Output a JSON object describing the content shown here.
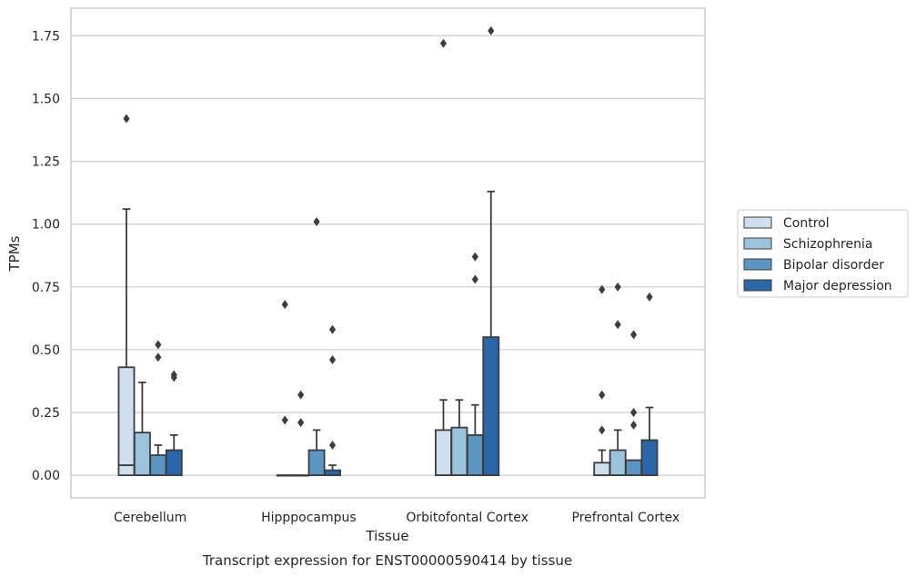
{
  "chart_data": {
    "type": "boxplot",
    "caption": "Transcript expression for ENST00000590414 by tissue",
    "xlabel": "Tissue",
    "ylabel": "TPMs",
    "ylim": [
      -0.09,
      1.86
    ],
    "yticks": [
      0.0,
      0.25,
      0.5,
      0.75,
      1.0,
      1.25,
      1.5,
      1.75
    ],
    "ytick_labels": [
      "0.00",
      "0.25",
      "0.50",
      "0.75",
      "1.00",
      "1.25",
      "1.50",
      "1.75"
    ],
    "grid": "horizontal",
    "legend_position": "right",
    "categories": [
      "Cerebellum",
      "Hipppocampus",
      "Orbitofontal Cortex",
      "Prefrontal Cortex"
    ],
    "series": [
      {
        "name": "Control",
        "color": "#cfdfee",
        "boxes": [
          {
            "q1": 0.0,
            "median": 0.04,
            "q3": 0.43,
            "whisker_low": 0.0,
            "whisker_high": 1.06,
            "outliers": [
              1.42
            ]
          },
          {
            "q1": 0.0,
            "median": 0.0,
            "q3": 0.0,
            "whisker_low": 0.0,
            "whisker_high": 0.0,
            "outliers": [
              0.22,
              0.68
            ]
          },
          {
            "q1": 0.0,
            "median": 0.0,
            "q3": 0.18,
            "whisker_low": 0.0,
            "whisker_high": 0.3,
            "outliers": [
              1.72
            ]
          },
          {
            "q1": 0.0,
            "median": 0.0,
            "q3": 0.05,
            "whisker_low": 0.0,
            "whisker_high": 0.1,
            "outliers": [
              0.18,
              0.32,
              0.74
            ]
          }
        ]
      },
      {
        "name": "Schizophrenia",
        "color": "#9ac3dd",
        "boxes": [
          {
            "q1": 0.0,
            "median": 0.0,
            "q3": 0.17,
            "whisker_low": 0.0,
            "whisker_high": 0.37,
            "outliers": []
          },
          {
            "q1": 0.0,
            "median": 0.0,
            "q3": 0.0,
            "whisker_low": 0.0,
            "whisker_high": 0.0,
            "outliers": [
              0.21,
              0.32
            ]
          },
          {
            "q1": 0.0,
            "median": 0.0,
            "q3": 0.19,
            "whisker_low": 0.0,
            "whisker_high": 0.3,
            "outliers": []
          },
          {
            "q1": 0.0,
            "median": 0.0,
            "q3": 0.1,
            "whisker_low": 0.0,
            "whisker_high": 0.18,
            "outliers": [
              0.6,
              0.75
            ]
          }
        ]
      },
      {
        "name": "Bipolar disorder",
        "color": "#5b95c2",
        "boxes": [
          {
            "q1": 0.0,
            "median": 0.0,
            "q3": 0.08,
            "whisker_low": 0.0,
            "whisker_high": 0.12,
            "outliers": [
              0.47,
              0.52
            ]
          },
          {
            "q1": 0.0,
            "median": 0.0,
            "q3": 0.1,
            "whisker_low": 0.0,
            "whisker_high": 0.18,
            "outliers": [
              1.01
            ]
          },
          {
            "q1": 0.0,
            "median": 0.0,
            "q3": 0.16,
            "whisker_low": 0.0,
            "whisker_high": 0.28,
            "outliers": [
              0.78,
              0.87
            ]
          },
          {
            "q1": 0.0,
            "median": 0.0,
            "q3": 0.06,
            "whisker_low": 0.0,
            "whisker_high": 0.06,
            "outliers": [
              0.2,
              0.25,
              0.56
            ]
          }
        ]
      },
      {
        "name": "Major depression",
        "color": "#2967a8",
        "boxes": [
          {
            "q1": 0.0,
            "median": 0.0,
            "q3": 0.1,
            "whisker_low": 0.0,
            "whisker_high": 0.16,
            "outliers": [
              0.39,
              0.4
            ]
          },
          {
            "q1": 0.0,
            "median": 0.0,
            "q3": 0.02,
            "whisker_low": 0.0,
            "whisker_high": 0.04,
            "outliers": [
              0.12,
              0.46,
              0.58
            ]
          },
          {
            "q1": 0.0,
            "median": 0.0,
            "q3": 0.55,
            "whisker_low": 0.0,
            "whisker_high": 1.13,
            "outliers": [
              1.77
            ]
          },
          {
            "q1": 0.0,
            "median": 0.0,
            "q3": 0.14,
            "whisker_low": 0.0,
            "whisker_high": 0.27,
            "outliers": [
              0.71
            ]
          }
        ]
      }
    ]
  }
}
